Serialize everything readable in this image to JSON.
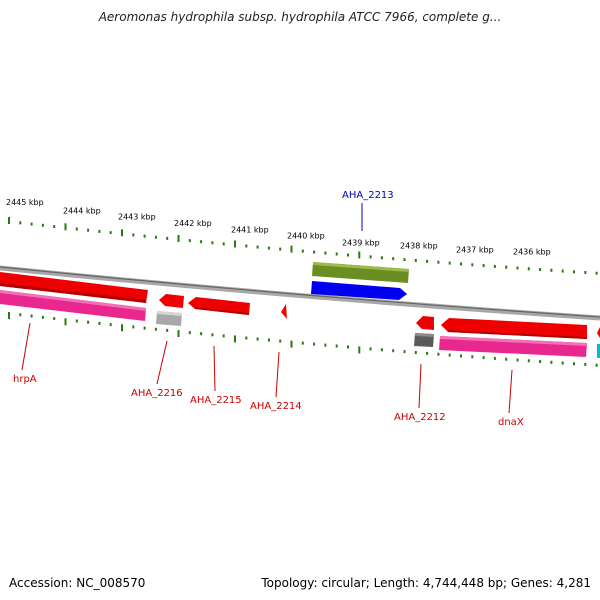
{
  "title": "Aeromonas hydrophila subsp. hydrophila ATCC 7966, complete g...",
  "footer": {
    "accession": "Accession: NC_008570",
    "summary": "Topology: circular; Length: 4,744,448 bp; Genes: 4,281"
  },
  "colors": {
    "backbone": "#8a8a8a",
    "tick": "#2a7a12",
    "forward_label": "#0000bb",
    "reverse_label": "#cc0000",
    "cds_red": "#ee0000",
    "gene_pink": "#e8278f",
    "olive": "#6b8e23",
    "blue": "#0000ee",
    "gray": "#a0a0a0",
    "dark_gray": "#5a5a5a",
    "cyan": "#00bcd4"
  },
  "ruler": {
    "unit": "kbp",
    "major_ticks": [
      {
        "label": "2445 kbp"
      },
      {
        "label": "2444 kbp"
      },
      {
        "label": "2443 kbp"
      },
      {
        "label": "2442 kbp"
      },
      {
        "label": "2441 kbp"
      },
      {
        "label": "2440 kbp"
      },
      {
        "label": "2439 kbp"
      },
      {
        "label": "2438 kbp"
      },
      {
        "label": "2437 kbp"
      },
      {
        "label": "2436 kbp"
      }
    ]
  },
  "labels": {
    "hrpA": "hrpA",
    "AHA_2216": "AHA_2216",
    "AHA_2215": "AHA_2215",
    "AHA_2214": "AHA_2214",
    "AHA_2213": "AHA_2213",
    "AHA_2212": "AHA_2212",
    "dnaX": "dnaX"
  }
}
